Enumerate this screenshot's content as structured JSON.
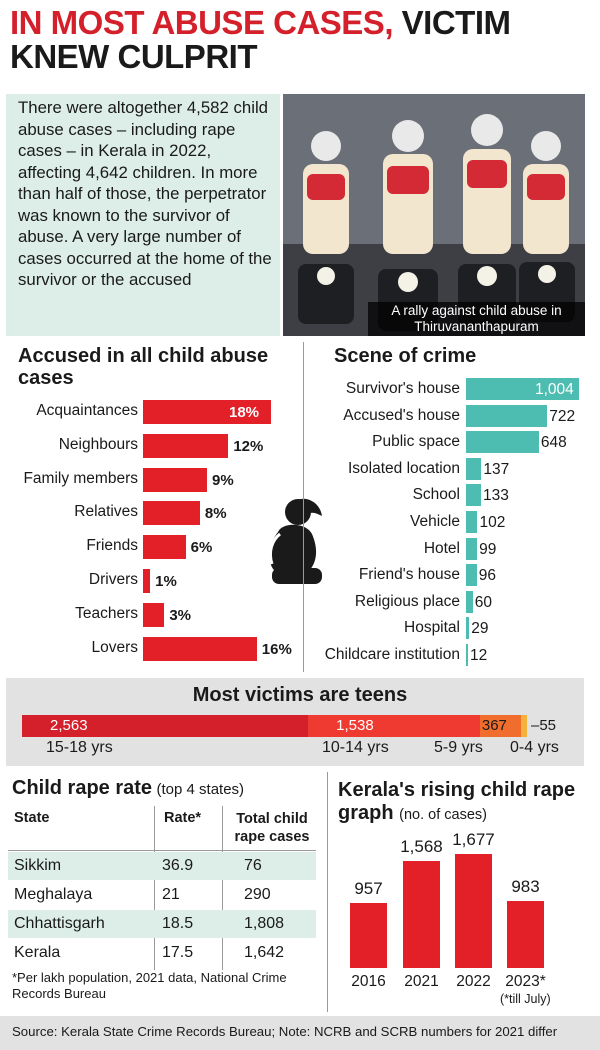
{
  "headline": {
    "red": "IN MOST ABUSE CASES,",
    "black_1": "VICTIM",
    "black_2": "KNEW CULPRIT"
  },
  "intro": "There were altogether 4,582 child abuse cases – including rape cases – in Kerala in 2022, affecting 4,642 children. In more than half of those, the perpetrator was known to the survivor of abuse. A very large number of cases occurred at the home of the survivor or the accused",
  "photo_caption": "A rally against child abuse in Thiruvananthapuram",
  "colors": {
    "red": "#e32027",
    "teal": "#4dbdb2",
    "headline_red": "#d4202a",
    "age_orange": "#f06d2d",
    "age_yellow": "#f4b23a"
  },
  "chart_data": [
    {
      "type": "bar",
      "title": "Accused in all child abuse cases",
      "categories": [
        "Acquaintances",
        "Neighbours",
        "Family members",
        "Relatives",
        "Friends",
        "Drivers",
        "Teachers",
        "Lovers"
      ],
      "values": [
        18,
        12,
        9,
        8,
        6,
        1,
        3,
        16
      ],
      "value_labels": [
        "18%",
        "12%",
        "9%",
        "8%",
        "6%",
        "1%",
        "3%",
        "16%"
      ],
      "orientation": "horizontal"
    },
    {
      "type": "bar",
      "title": "Scene of crime",
      "categories": [
        "Survivor's house",
        "Accused's house",
        "Public space",
        "Isolated location",
        "School",
        "Vehicle",
        "Hotel",
        "Friend's house",
        "Religious place",
        "Hospital",
        "Childcare institution"
      ],
      "values": [
        1004,
        722,
        648,
        137,
        133,
        102,
        99,
        96,
        60,
        29,
        12
      ],
      "value_labels": [
        "1,004",
        "722",
        "648",
        "137",
        "133",
        "102",
        "99",
        "96",
        "60",
        "29",
        "12"
      ],
      "orientation": "horizontal"
    },
    {
      "type": "bar",
      "title": "Most victims are teens",
      "categories": [
        "15-18 yrs",
        "10-14 yrs",
        "5-9 yrs",
        "0-4 yrs"
      ],
      "values": [
        2563,
        1538,
        367,
        55
      ],
      "value_labels": [
        "2,563",
        "1,538",
        "367",
        "–55"
      ],
      "orientation": "stacked-horizontal"
    },
    {
      "type": "table",
      "title": "Child rape rate",
      "title_note": "(top 4 states)",
      "columns": [
        "State",
        "Rate*",
        "Total child rape cases"
      ],
      "rows": [
        [
          "Sikkim",
          "36.9",
          "76"
        ],
        [
          "Meghalaya",
          "21",
          "290"
        ],
        [
          "Chhattisgarh",
          "18.5",
          "1,808"
        ],
        [
          "Kerala",
          "17.5",
          "1,642"
        ]
      ],
      "footnote": "*Per lakh population, 2021 data, National Crime Records Bureau"
    },
    {
      "type": "bar",
      "title": "Kerala's rising child rape graph",
      "title_note": "(no. of cases)",
      "categories": [
        "2016",
        "2021",
        "2022",
        "2023*"
      ],
      "values": [
        957,
        1568,
        1677,
        983
      ],
      "value_labels": [
        "957",
        "1,568",
        "1,677",
        "983"
      ],
      "footnote": "(*till July)"
    }
  ],
  "source": "Source: Kerala State Crime Records Bureau; Note: NCRB and SCRB numbers for 2021 differ"
}
